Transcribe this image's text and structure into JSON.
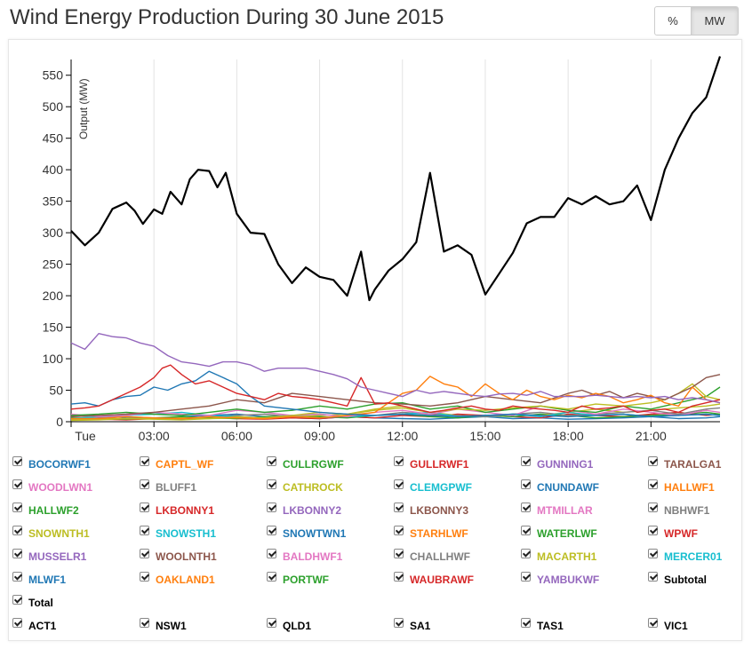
{
  "title": "Wind Energy Production During 30 June 2015",
  "unit_toggle": {
    "percent_label": "%",
    "mw_label": "MW"
  },
  "legend": [
    {
      "label": "BOCORWF1",
      "color": "#1f77b4"
    },
    {
      "label": "CAPTL_WF",
      "color": "#ff7f0e"
    },
    {
      "label": "CULLRGWF",
      "color": "#2ca02c"
    },
    {
      "label": "GULLRWF1",
      "color": "#d62728"
    },
    {
      "label": "GUNNING1",
      "color": "#9467bd"
    },
    {
      "label": "TARALGA1",
      "color": "#8c564b"
    },
    {
      "label": "WOODLWN1",
      "color": "#e377c2"
    },
    {
      "label": "BLUFF1",
      "color": "#7f7f7f"
    },
    {
      "label": "CATHROCK",
      "color": "#bcbd22"
    },
    {
      "label": "CLEMGPWF",
      "color": "#17becf"
    },
    {
      "label": "CNUNDAWF",
      "color": "#1f77b4"
    },
    {
      "label": "HALLWF1",
      "color": "#ff7f0e"
    },
    {
      "label": "HALLWF2",
      "color": "#2ca02c"
    },
    {
      "label": "LKBONNY1",
      "color": "#d62728"
    },
    {
      "label": "LKBONNY2",
      "color": "#9467bd"
    },
    {
      "label": "LKBONNY3",
      "color": "#8c564b"
    },
    {
      "label": "MTMILLAR",
      "color": "#e377c2"
    },
    {
      "label": "NBHWF1",
      "color": "#7f7f7f"
    },
    {
      "label": "SNOWNTH1",
      "color": "#bcbd22"
    },
    {
      "label": "SNOWSTH1",
      "color": "#17becf"
    },
    {
      "label": "SNOWTWN1",
      "color": "#1f77b4"
    },
    {
      "label": "STARHLWF",
      "color": "#ff7f0e"
    },
    {
      "label": "WATERLWF",
      "color": "#2ca02c"
    },
    {
      "label": "WPWF",
      "color": "#d62728"
    },
    {
      "label": "MUSSELR1",
      "color": "#9467bd"
    },
    {
      "label": "WOOLNTH1",
      "color": "#8c564b"
    },
    {
      "label": "BALDHWF1",
      "color": "#e377c2"
    },
    {
      "label": "CHALLHWF",
      "color": "#7f7f7f"
    },
    {
      "label": "MACARTH1",
      "color": "#bcbd22"
    },
    {
      "label": "MERCER01",
      "color": "#17becf"
    },
    {
      "label": "MLWF1",
      "color": "#1f77b4"
    },
    {
      "label": "OAKLAND1",
      "color": "#ff7f0e"
    },
    {
      "label": "PORTWF",
      "color": "#2ca02c"
    },
    {
      "label": "WAUBRAWF",
      "color": "#d62728"
    },
    {
      "label": "YAMBUKWF",
      "color": "#9467bd"
    },
    {
      "label": "Subtotal",
      "color": "#000000"
    },
    {
      "label": "Total",
      "color": "#000000"
    }
  ],
  "regions": [
    "ACT1",
    "NSW1",
    "QLD1",
    "SA1",
    "TAS1",
    "VIC1"
  ],
  "chart_data": {
    "type": "line",
    "ylabel": "Output (MW)",
    "ylim": [
      0,
      575
    ],
    "yticks": [
      0,
      50,
      100,
      150,
      200,
      250,
      300,
      350,
      400,
      450,
      500,
      550
    ],
    "x_tick_hours": [
      0,
      3,
      6,
      9,
      12,
      15,
      18,
      21
    ],
    "x_tick_labels": [
      "Tue",
      "03:00",
      "06:00",
      "09:00",
      "12:00",
      "15:00",
      "18:00",
      "21:00"
    ],
    "xlim_hours": [
      0,
      23.5
    ],
    "grid": true,
    "series": [
      {
        "name": "Total",
        "color": "#000000",
        "x": [
          0,
          0.5,
          1,
          1.5,
          2,
          2.3,
          2.6,
          3,
          3.3,
          3.6,
          4,
          4.3,
          4.6,
          5,
          5.3,
          5.6,
          6,
          6.5,
          7,
          7.5,
          8,
          8.5,
          9,
          9.5,
          10,
          10.5,
          10.8,
          11,
          11.5,
          12,
          12.5,
          13,
          13.5,
          14,
          14.5,
          15,
          15.5,
          16,
          16.5,
          17,
          17.5,
          18,
          18.5,
          19,
          19.5,
          20,
          20.5,
          21,
          21.5,
          22,
          22.5,
          23,
          23.5
        ],
        "y": [
          303,
          280,
          300,
          338,
          348,
          335,
          314,
          337,
          330,
          365,
          345,
          385,
          400,
          398,
          372,
          395,
          330,
          300,
          298,
          250,
          220,
          245,
          230,
          225,
          200,
          270,
          193,
          210,
          240,
          258,
          285,
          395,
          270,
          280,
          265,
          202,
          235,
          268,
          315,
          325,
          325,
          355,
          345,
          358,
          345,
          350,
          375,
          320,
          400,
          450,
          490,
          515,
          580
        ]
      },
      {
        "name": "LKBONNY2",
        "color": "#9467bd",
        "x": [
          0,
          0.5,
          1,
          1.5,
          2,
          2.5,
          3,
          3.5,
          4,
          4.5,
          5,
          5.5,
          6,
          6.5,
          7,
          7.5,
          8,
          8.5,
          9,
          9.5,
          10,
          10.5,
          11,
          11.5,
          12,
          12.5,
          13,
          13.5,
          14,
          14.5,
          15,
          15.5,
          16,
          16.5,
          17,
          17.5,
          18,
          18.5,
          19,
          19.5,
          20,
          20.5,
          21,
          21.5,
          22,
          22.5,
          23,
          23.5
        ],
        "y": [
          125,
          115,
          140,
          135,
          133,
          125,
          120,
          105,
          95,
          92,
          88,
          95,
          95,
          90,
          80,
          85,
          85,
          85,
          80,
          75,
          68,
          55,
          50,
          45,
          40,
          50,
          45,
          48,
          45,
          42,
          40,
          44,
          45,
          42,
          48,
          40,
          40,
          40,
          42,
          40,
          38,
          40,
          38,
          40,
          35,
          38,
          35,
          30
        ]
      },
      {
        "name": "LKBONNY1",
        "color": "#d62728",
        "x": [
          0,
          0.5,
          1,
          1.5,
          2,
          2.5,
          3,
          3.3,
          3.6,
          4,
          4.5,
          5,
          5.5,
          6,
          6.5,
          7,
          7.5,
          8,
          8.5,
          9,
          9.5,
          10,
          10.5,
          11,
          11.5,
          12,
          12.5,
          13,
          13.5,
          14,
          14.5,
          15,
          15.5,
          16,
          16.5,
          17,
          17.5,
          18,
          18.5,
          19,
          19.5,
          20,
          20.5,
          21,
          21.5,
          22,
          22.5,
          23,
          23.5
        ],
        "y": [
          20,
          22,
          25,
          35,
          45,
          55,
          70,
          85,
          90,
          75,
          60,
          65,
          55,
          45,
          40,
          35,
          45,
          40,
          38,
          35,
          30,
          25,
          70,
          28,
          30,
          25,
          20,
          15,
          18,
          22,
          25,
          20,
          18,
          25,
          22,
          20,
          18,
          15,
          25,
          20,
          22,
          25,
          15,
          18,
          20,
          15,
          25,
          30,
          35
        ]
      },
      {
        "name": "BOCORWF1",
        "color": "#1f77b4",
        "x": [
          0,
          0.5,
          1,
          1.5,
          2,
          2.5,
          3,
          3.5,
          4,
          4.5,
          5,
          5.5,
          6,
          6.5,
          7,
          8,
          9,
          10,
          11,
          12,
          13,
          14,
          15,
          16,
          17,
          18,
          19,
          20,
          21,
          22,
          23,
          23.5
        ],
        "y": [
          28,
          30,
          25,
          35,
          40,
          42,
          55,
          50,
          60,
          65,
          80,
          70,
          60,
          40,
          25,
          20,
          15,
          12,
          10,
          12,
          10,
          8,
          10,
          12,
          10,
          8,
          10,
          12,
          8,
          10,
          12,
          10
        ]
      },
      {
        "name": "STARHLWF",
        "color": "#ff7f0e",
        "x": [
          0,
          1,
          2,
          3,
          4,
          5,
          6,
          7,
          8,
          9,
          10,
          11,
          11.5,
          12,
          12.5,
          13,
          13.5,
          14,
          14.5,
          15,
          15.5,
          16,
          16.5,
          17,
          17.5,
          18,
          18.5,
          19,
          19.5,
          20,
          20.5,
          21,
          21.5,
          22,
          22.5,
          23,
          23.5
        ],
        "y": [
          5,
          5,
          8,
          6,
          5,
          8,
          6,
          5,
          8,
          6,
          10,
          15,
          30,
          45,
          50,
          72,
          60,
          55,
          40,
          60,
          45,
          35,
          50,
          40,
          35,
          42,
          38,
          45,
          40,
          30,
          35,
          42,
          30,
          25,
          55,
          35,
          30
        ]
      },
      {
        "name": "TARALGA1",
        "color": "#8c564b",
        "x": [
          0,
          1,
          2,
          3,
          4,
          5,
          6,
          7,
          8,
          9,
          10,
          11,
          12,
          13,
          14,
          15,
          16,
          17,
          18,
          18.5,
          19,
          19.5,
          20,
          20.5,
          21,
          21.5,
          22,
          22.5,
          23,
          23.5
        ],
        "y": [
          8,
          10,
          12,
          15,
          20,
          25,
          35,
          30,
          45,
          40,
          35,
          30,
          28,
          25,
          30,
          40,
          35,
          30,
          45,
          50,
          42,
          48,
          38,
          45,
          40,
          35,
          45,
          55,
          70,
          75
        ]
      },
      {
        "name": "MACARTH1",
        "color": "#bcbd22",
        "x": [
          0,
          1,
          2,
          3,
          4,
          5,
          6,
          7,
          8,
          9,
          10,
          11,
          12,
          13,
          14,
          15,
          16,
          17,
          18,
          19,
          20,
          21,
          21.5,
          22,
          22.5,
          23,
          23.5
        ],
        "y": [
          3,
          4,
          5,
          5,
          6,
          5,
          8,
          6,
          10,
          15,
          12,
          18,
          22,
          15,
          20,
          18,
          22,
          25,
          20,
          28,
          25,
          30,
          35,
          45,
          60,
          40,
          35
        ]
      },
      {
        "name": "WATERLWF",
        "color": "#2ca02c",
        "x": [
          0,
          1,
          2,
          3,
          4,
          5,
          6,
          7,
          8,
          9,
          10,
          11,
          12,
          13,
          14,
          15,
          16,
          17,
          18,
          19,
          20,
          21,
          22,
          23,
          23.5
        ],
        "y": [
          10,
          12,
          15,
          12,
          10,
          15,
          20,
          15,
          18,
          25,
          20,
          28,
          30,
          20,
          25,
          15,
          20,
          25,
          18,
          15,
          25,
          20,
          30,
          40,
          55
        ]
      },
      {
        "name": "MUSSELR1",
        "color": "#e377c2",
        "x": [
          0,
          1,
          2,
          3,
          4,
          5,
          6,
          7,
          8,
          9,
          10,
          11,
          12,
          13,
          14,
          15,
          16,
          17,
          18,
          19,
          20,
          21,
          22,
          23,
          23.5
        ],
        "y": [
          12,
          8,
          10,
          15,
          12,
          10,
          18,
          15,
          10,
          12,
          8,
          15,
          18,
          12,
          20,
          15,
          10,
          25,
          18,
          12,
          20,
          15,
          10,
          18,
          15
        ]
      },
      {
        "name": "SNOWSTH1",
        "color": "#17becf",
        "x": [
          0,
          1,
          2,
          3,
          4,
          5,
          6,
          7,
          8,
          9,
          10,
          11,
          12,
          13,
          14,
          15,
          16,
          17,
          18,
          19,
          20,
          21,
          22,
          23,
          23.5
        ],
        "y": [
          5,
          8,
          10,
          12,
          15,
          10,
          8,
          6,
          10,
          12,
          8,
          10,
          12,
          15,
          8,
          10,
          12,
          8,
          15,
          10,
          12,
          8,
          10,
          12,
          10
        ]
      },
      {
        "name": "BLUFF1",
        "color": "#7f7f7f",
        "x": [
          0,
          1,
          2,
          3,
          4,
          5,
          6,
          7,
          8,
          9,
          10,
          11,
          12,
          13,
          14,
          15,
          16,
          17,
          18,
          19,
          20,
          21,
          22,
          23,
          23.5
        ],
        "y": [
          4,
          6,
          8,
          6,
          5,
          8,
          10,
          12,
          8,
          6,
          8,
          10,
          15,
          12,
          10,
          8,
          12,
          15,
          10,
          12,
          15,
          18,
          12,
          20,
          22
        ]
      },
      {
        "name": "CATHROCK",
        "color": "#bcbd22",
        "x": [
          0,
          1,
          2,
          3,
          4,
          5,
          6,
          7,
          8,
          9,
          10,
          11,
          12,
          13,
          14,
          15,
          16,
          17,
          18,
          19,
          20,
          21,
          22,
          23,
          23.5
        ],
        "y": [
          2,
          3,
          5,
          4,
          3,
          5,
          6,
          5,
          8,
          10,
          12,
          20,
          25,
          15,
          10,
          8,
          12,
          10,
          15,
          20,
          15,
          18,
          22,
          25,
          28
        ]
      },
      {
        "name": "HALLWF2",
        "color": "#2ca02c",
        "x": [
          0,
          1,
          2,
          3,
          4,
          5,
          6,
          7,
          8,
          9,
          10,
          11,
          12,
          13,
          14,
          15,
          16,
          17,
          18,
          19,
          20,
          21,
          22,
          23,
          23.5
        ],
        "y": [
          6,
          5,
          4,
          6,
          8,
          6,
          5,
          8,
          10,
          8,
          6,
          10,
          12,
          8,
          6,
          10,
          8,
          12,
          10,
          6,
          8,
          10,
          12,
          15,
          12
        ]
      },
      {
        "name": "WPWF",
        "color": "#d62728",
        "x": [
          0,
          1,
          2,
          3,
          4,
          5,
          6,
          7,
          8,
          9,
          10,
          11,
          12,
          13,
          14,
          15,
          16,
          17,
          18,
          19,
          20,
          21,
          22,
          23,
          23.5
        ],
        "y": [
          3,
          4,
          3,
          5,
          4,
          6,
          5,
          4,
          6,
          5,
          8,
          6,
          10,
          8,
          12,
          10,
          8,
          6,
          12,
          10,
          8,
          12,
          15,
          10,
          12
        ]
      },
      {
        "name": "CNUNDAWF",
        "color": "#1f77b4",
        "x": [
          0,
          1,
          2,
          3,
          4,
          5,
          6,
          7,
          8,
          9,
          10,
          11,
          12,
          13,
          14,
          15,
          16,
          17,
          18,
          19,
          20,
          21,
          22,
          23,
          23.5
        ],
        "y": [
          8,
          10,
          6,
          5,
          8,
          10,
          12,
          8,
          6,
          5,
          8,
          6,
          5,
          4,
          6,
          8,
          5,
          6,
          4,
          5,
          6,
          8,
          5,
          6,
          8
        ]
      }
    ]
  }
}
